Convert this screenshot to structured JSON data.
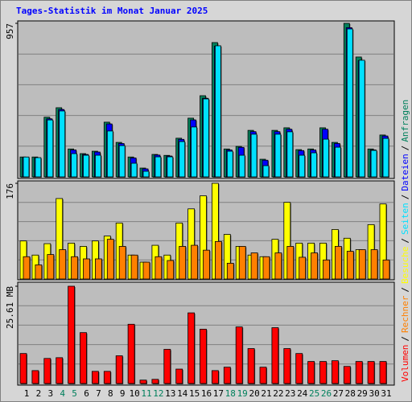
{
  "chart_data": [
    {
      "type": "bar",
      "title": "Tages-Statistik im Monat Januar 2025",
      "legend_separator": "/",
      "ylim": [
        0,
        957
      ],
      "yticks": [
        957
      ],
      "series": [
        {
          "name": "Anfragen",
          "color": "#00805c",
          "values": [
            124,
            124,
            372,
            431,
            174,
            145,
            160,
            341,
            215,
            124,
            55,
            140,
            134,
            241,
            366,
            506,
            837,
            174,
            190,
            290,
            110,
            290,
            306,
            170,
            174,
            306,
            215,
            957,
            747,
            174,
            261
          ]
        },
        {
          "name": "Dateien",
          "color": "#0000ff",
          "values": [
            120,
            118,
            362,
            420,
            168,
            140,
            155,
            330,
            208,
            118,
            50,
            136,
            130,
            234,
            355,
            490,
            815,
            168,
            184,
            282,
            104,
            282,
            297,
            164,
            168,
            297,
            208,
            930,
            725,
            168,
            255
          ]
        },
        {
          "name": "Seiten",
          "color": "#00e0ff",
          "values": [
            124,
            120,
            355,
            411,
            145,
            135,
            135,
            286,
            195,
            85,
            35,
            125,
            125,
            220,
            311,
            486,
            817,
            160,
            135,
            266,
            70,
            266,
            281,
            135,
            150,
            235,
            185,
            922,
            727,
            165,
            240
          ]
        }
      ]
    },
    {
      "type": "bar",
      "ylim": [
        0,
        176
      ],
      "yticks": [
        176
      ],
      "series": [
        {
          "name": "Besuche",
          "color": "#ffff00",
          "values": [
            70,
            44,
            65,
            148,
            66,
            60,
            70,
            79,
            103,
            44,
            31,
            62,
            44,
            103,
            129,
            153,
            176,
            82,
            60,
            44,
            41,
            73,
            141,
            66,
            66,
            66,
            91,
            75,
            54,
            100,
            138
          ]
        },
        {
          "name": "Rechner",
          "color": "#ff8000",
          "values": [
            41,
            26,
            45,
            54,
            41,
            37,
            37,
            73,
            60,
            44,
            31,
            41,
            34,
            60,
            62,
            53,
            69,
            29,
            60,
            48,
            41,
            48,
            60,
            40,
            48,
            35,
            60,
            51,
            54,
            54,
            35
          ]
        }
      ]
    },
    {
      "type": "bar",
      "ylim": [
        0,
        25.61
      ],
      "yticks": [
        {
          "value": 25.61,
          "label": "25.61 MB"
        }
      ],
      "categories": [
        "1",
        "2",
        "3",
        "4",
        "5",
        "6",
        "7",
        "8",
        "9",
        "10",
        "11",
        "12",
        "13",
        "14",
        "15",
        "16",
        "17",
        "18",
        "19",
        "20",
        "21",
        "22",
        "23",
        "24",
        "25",
        "26",
        "27",
        "28",
        "29",
        "30",
        "31"
      ],
      "category_colors": [
        "#000000",
        "#000000",
        "#000000",
        "#00805c",
        "#00805c",
        "#000000",
        "#000000",
        "#000000",
        "#000000",
        "#000000",
        "#00805c",
        "#00805c",
        "#000000",
        "#000000",
        "#000000",
        "#000000",
        "#000000",
        "#00805c",
        "#00805c",
        "#000000",
        "#000000",
        "#000000",
        "#000000",
        "#000000",
        "#00805c",
        "#00805c",
        "#000000",
        "#000000",
        "#000000",
        "#000000",
        "#000000"
      ],
      "series": [
        {
          "name": "Volumen",
          "color": "#ff0000",
          "values": [
            7.9,
            3.4,
            6.6,
            6.8,
            25.61,
            13.4,
            3.2,
            3.2,
            7.3,
            15.6,
            0.9,
            1.1,
            9.0,
            3.8,
            18.6,
            14.3,
            3.4,
            4.3,
            14.9,
            9.2,
            4.3,
            14.7,
            9.2,
            7.9,
            5.8,
            5.8,
            6.0,
            4.5,
            5.8,
            5.8,
            5.8
          ]
        }
      ]
    }
  ]
}
